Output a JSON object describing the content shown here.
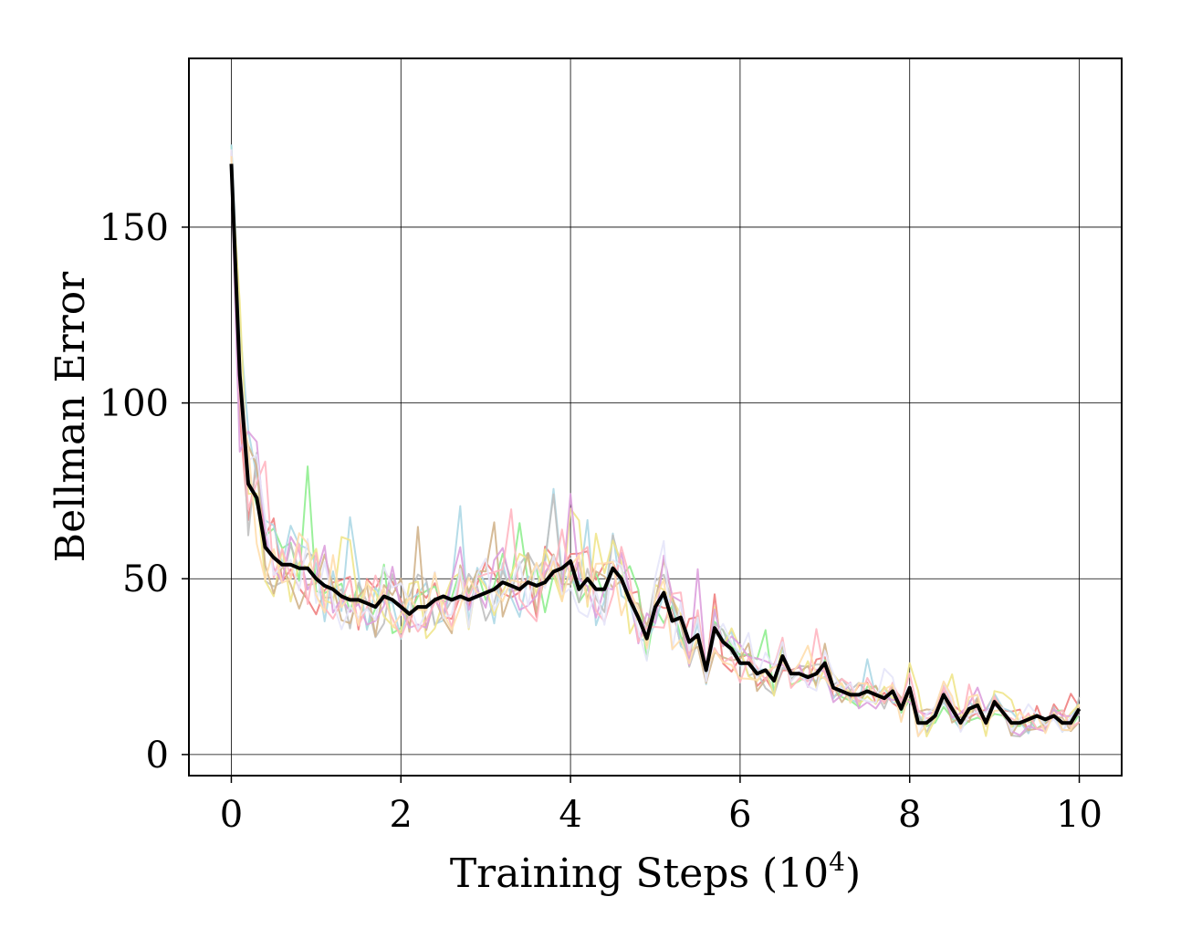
{
  "chart_data": {
    "type": "line",
    "xlabel": "Training Steps (10",
    "xlabel_sup": "4",
    "xlabel_end": ")",
    "ylabel": "Bellman Error",
    "xlim": [
      -0.5,
      10.5
    ],
    "ylim": [
      -6,
      198
    ],
    "xticks": [
      0,
      2,
      4,
      6,
      8,
      10
    ],
    "xtick_labels": [
      "0",
      "2",
      "4",
      "6",
      "8",
      "10"
    ],
    "yticks": [
      0,
      50,
      100,
      150
    ],
    "ytick_labels": [
      "0",
      "50",
      "100",
      "150"
    ],
    "grid": true,
    "mean": {
      "color": "#000000",
      "x": [
        0.0,
        0.1,
        0.2,
        0.3,
        0.4,
        0.5,
        0.6,
        0.7,
        0.8,
        0.9,
        1.0,
        1.1,
        1.2,
        1.3,
        1.4,
        1.5,
        1.6,
        1.7,
        1.8,
        1.9,
        2.0,
        2.1,
        2.2,
        2.3,
        2.4,
        2.5,
        2.6,
        2.7,
        2.8,
        2.9,
        3.0,
        3.1,
        3.2,
        3.3,
        3.4,
        3.5,
        3.6,
        3.7,
        3.8,
        3.9,
        4.0,
        4.1,
        4.2,
        4.3,
        4.4,
        4.5,
        4.6,
        4.7,
        4.8,
        4.9,
        5.0,
        5.1,
        5.2,
        5.3,
        5.4,
        5.5,
        5.6,
        5.7,
        5.8,
        5.9,
        6.0,
        6.1,
        6.2,
        6.3,
        6.4,
        6.5,
        6.6,
        6.7,
        6.8,
        6.9,
        7.0,
        7.1,
        7.2,
        7.3,
        7.4,
        7.5,
        7.6,
        7.7,
        7.8,
        7.9,
        8.0,
        8.1,
        8.2,
        8.3,
        8.4,
        8.5,
        8.6,
        8.7,
        8.8,
        8.9,
        9.0,
        9.1,
        9.2,
        9.3,
        9.4,
        9.5,
        9.6,
        9.7,
        9.8,
        9.9,
        10.0
      ],
      "y": [
        168,
        108,
        77,
        73,
        59,
        56,
        54,
        54,
        53,
        53,
        50,
        48,
        47,
        45,
        44,
        44,
        43,
        42,
        45,
        44,
        42,
        40,
        42,
        42,
        44,
        45,
        44,
        45,
        44,
        45,
        46,
        47,
        49,
        48,
        47,
        49,
        48,
        49,
        52,
        53,
        55,
        47,
        50,
        47,
        47,
        53,
        50,
        44,
        39,
        33,
        42,
        46,
        38,
        39,
        32,
        34,
        24,
        36,
        32,
        30,
        26,
        26,
        23,
        24,
        21,
        28,
        23,
        23,
        22,
        23,
        26,
        19,
        18,
        17,
        17,
        18,
        17,
        16,
        18,
        13,
        19,
        9,
        9,
        11,
        17,
        13,
        9,
        13,
        14,
        9,
        15,
        12,
        9,
        9,
        10,
        11,
        10,
        11,
        9,
        9,
        13
      ]
    },
    "series": [
      {
        "color": "#f08080",
        "seed": 11
      },
      {
        "color": "#90ee90",
        "seed": 23
      },
      {
        "color": "#add8e6",
        "seed": 37
      },
      {
        "color": "#c0c0c0",
        "seed": 41
      },
      {
        "color": "#f0e68c",
        "seed": 53
      },
      {
        "color": "#d2b48c",
        "seed": 67
      },
      {
        "color": "#dda0dd",
        "seed": 71
      },
      {
        "color": "#ffb6c1",
        "seed": 83
      },
      {
        "color": "#e6e6fa",
        "seed": 97
      },
      {
        "color": "#ffdead",
        "seed": 101
      }
    ]
  }
}
